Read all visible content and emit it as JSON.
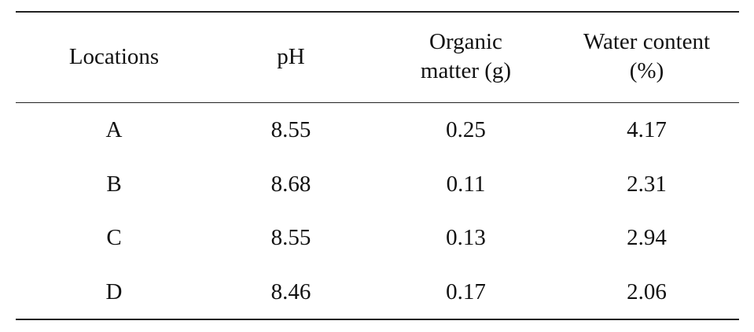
{
  "table": {
    "headers": [
      [
        "Locations"
      ],
      [
        "pH"
      ],
      [
        "Organic",
        "matter (g)"
      ],
      [
        "Water content",
        "(%)"
      ]
    ],
    "rows": [
      [
        "A",
        "8.55",
        "0.25",
        "4.17"
      ],
      [
        "B",
        "8.68",
        "0.11",
        "2.31"
      ],
      [
        "C",
        "8.55",
        "0.13",
        "2.94"
      ],
      [
        "D",
        "8.46",
        "0.17",
        "2.06"
      ]
    ]
  }
}
